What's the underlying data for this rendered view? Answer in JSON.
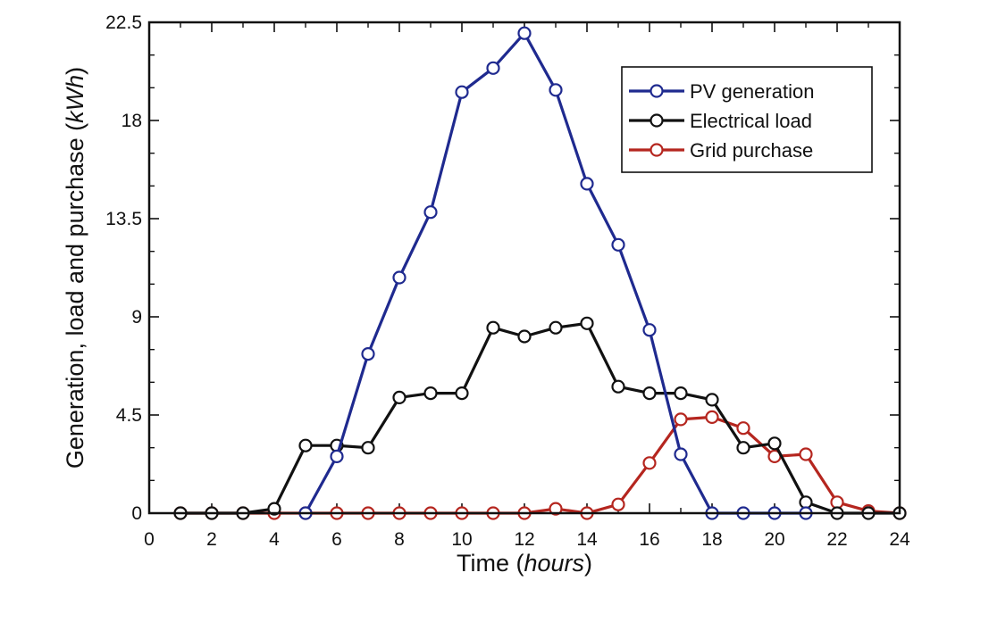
{
  "chart_data": {
    "type": "line",
    "xlabel": "Time",
    "xlabel_unit": "hours",
    "ylabel": "Generation, load and purchase",
    "ylabel_unit": "kWh",
    "xlim": [
      0,
      24
    ],
    "ylim": [
      0,
      22.5
    ],
    "xticks": [
      0,
      2,
      4,
      6,
      8,
      10,
      12,
      14,
      16,
      18,
      20,
      22,
      24
    ],
    "xtick_labels": [
      "0",
      "2",
      "4",
      "6",
      "8",
      "10",
      "12",
      "14",
      "16",
      "18",
      "20",
      "22",
      "24"
    ],
    "yticks": [
      0,
      4.5,
      9,
      13.5,
      18,
      22.5
    ],
    "ytick_labels": [
      "0",
      "4.5",
      "9",
      "13.5",
      "18",
      "22.5"
    ],
    "grid": false,
    "legend_position": "top-right",
    "series": [
      {
        "name": "PV generation",
        "color": "#1f2a8f",
        "points": [
          [
            5,
            0
          ],
          [
            6,
            2.6
          ],
          [
            7,
            7.3
          ],
          [
            8,
            10.8
          ],
          [
            9,
            13.8
          ],
          [
            10,
            19.3
          ],
          [
            11,
            20.4
          ],
          [
            12,
            22.0
          ],
          [
            13,
            19.4
          ],
          [
            14,
            15.1
          ],
          [
            15,
            12.3
          ],
          [
            16,
            8.4
          ],
          [
            17,
            2.7
          ],
          [
            18,
            0
          ],
          [
            19,
            0
          ],
          [
            20,
            0
          ],
          [
            21,
            0
          ]
        ]
      },
      {
        "name": "Electrical load",
        "color": "#111111",
        "points": [
          [
            1,
            0
          ],
          [
            2,
            0
          ],
          [
            3,
            0
          ],
          [
            4,
            0.2
          ],
          [
            5,
            3.1
          ],
          [
            6,
            3.1
          ],
          [
            7,
            3.0
          ],
          [
            8,
            5.3
          ],
          [
            9,
            5.5
          ],
          [
            10,
            5.5
          ],
          [
            11,
            8.5
          ],
          [
            12,
            8.1
          ],
          [
            13,
            8.5
          ],
          [
            14,
            8.7
          ],
          [
            15,
            5.8
          ],
          [
            16,
            5.5
          ],
          [
            17,
            5.5
          ],
          [
            18,
            5.2
          ],
          [
            19,
            3.0
          ],
          [
            20,
            3.2
          ],
          [
            21,
            0.5
          ],
          [
            22,
            0
          ],
          [
            23,
            0
          ],
          [
            24,
            0
          ]
        ]
      },
      {
        "name": "Grid purchase",
        "color": "#b5261f",
        "points": [
          [
            1,
            0
          ],
          [
            2,
            0
          ],
          [
            3,
            0
          ],
          [
            4,
            0
          ],
          [
            5,
            0
          ],
          [
            6,
            0
          ],
          [
            7,
            0
          ],
          [
            8,
            0
          ],
          [
            9,
            0
          ],
          [
            10,
            0
          ],
          [
            11,
            0
          ],
          [
            12,
            0
          ],
          [
            13,
            0.2
          ],
          [
            14,
            0
          ],
          [
            15,
            0.4
          ],
          [
            16,
            2.3
          ],
          [
            17,
            4.3
          ],
          [
            18,
            4.4
          ],
          [
            19,
            3.9
          ],
          [
            20,
            2.6
          ],
          [
            21,
            2.7
          ],
          [
            22,
            0.5
          ],
          [
            23,
            0.1
          ],
          [
            24,
            0
          ]
        ]
      }
    ]
  }
}
